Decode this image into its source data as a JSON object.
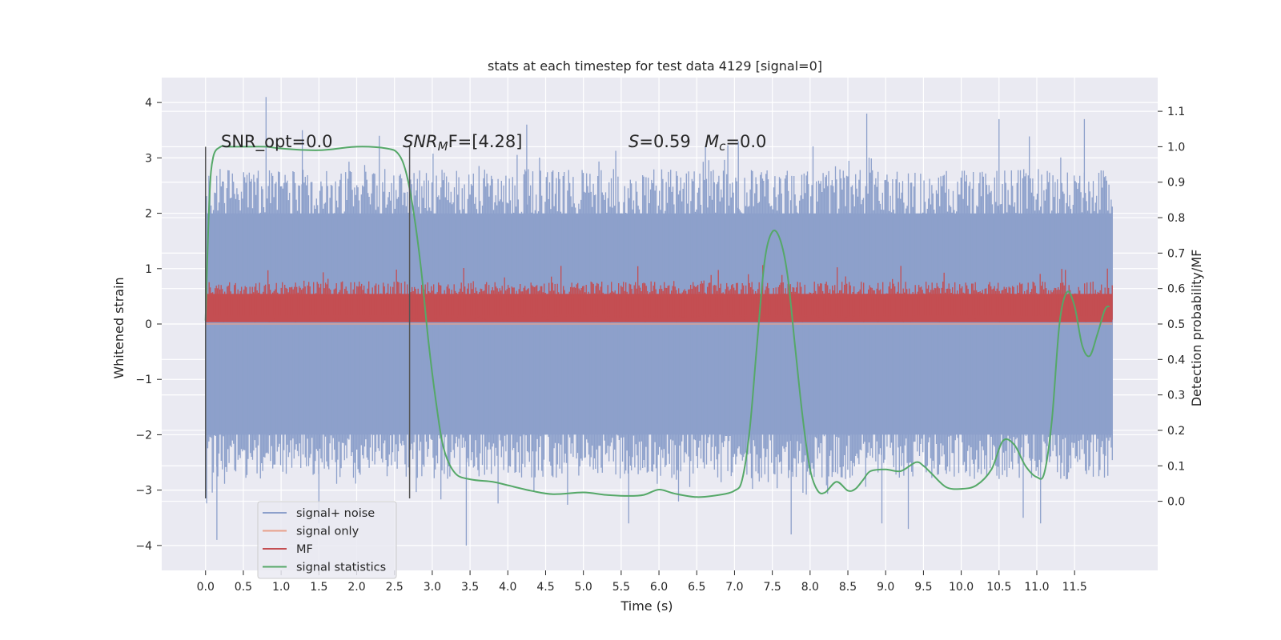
{
  "chart_data": {
    "type": "line",
    "title": "stats at each timestep for test data 4129 [signal=0]",
    "xlabel": "Time (s)",
    "ylabel_left": "Whitened strain",
    "ylabel_right": "Detection probability/MF",
    "xlim": [
      -0.58,
      12.6
    ],
    "ylim_left": [
      -4.45,
      4.45
    ],
    "ylim_right": [
      -0.195,
      1.195
    ],
    "x_ticks": [
      "0.0",
      "0.5",
      "1.0",
      "1.5",
      "2.0",
      "2.5",
      "3.0",
      "3.5",
      "4.0",
      "4.5",
      "5.0",
      "5.5",
      "6.0",
      "6.5",
      "7.0",
      "7.5",
      "8.0",
      "8.5",
      "9.0",
      "9.5",
      "10.0",
      "10.5",
      "11.0",
      "11.5"
    ],
    "x_tick_values": [
      0,
      0.5,
      1,
      1.5,
      2,
      2.5,
      3,
      3.5,
      4,
      4.5,
      5,
      5.5,
      6,
      6.5,
      7,
      7.5,
      8,
      8.5,
      9,
      9.5,
      10,
      10.5,
      11,
      11.5
    ],
    "y_left_ticks": [
      "−4",
      "−3",
      "−2",
      "−1",
      "0",
      "1",
      "2",
      "3",
      "4"
    ],
    "y_left_tick_values": [
      -4,
      -3,
      -2,
      -1,
      0,
      1,
      2,
      3,
      4
    ],
    "y_right_ticks": [
      "0.0",
      "0.1",
      "0.2",
      "0.3",
      "0.4",
      "0.5",
      "0.6",
      "0.7",
      "0.8",
      "0.9",
      "1.0",
      "1.1"
    ],
    "y_right_tick_values": [
      0,
      0.1,
      0.2,
      0.3,
      0.4,
      0.5,
      0.6,
      0.7,
      0.8,
      0.9,
      1.0,
      1.1
    ],
    "grid": true,
    "legend_position": "lower-left",
    "annotations": {
      "snr_opt": "SNR_opt=0.0",
      "snr_mf_base": "SNR",
      "snr_mf_sub": "M",
      "snr_mf_rest": "F=[4.28]",
      "s_italic": "S",
      "s_rest": "=0.59",
      "mc_base": "M",
      "mc_sub": "c",
      "mc_rest": "=0.0"
    },
    "vertical_lines_x": [
      0.0,
      2.7
    ],
    "vertical_lines_ylim": [
      -3.15,
      3.2
    ],
    "series": [
      {
        "name": "signal+ noise",
        "color": "#8da0cb",
        "axis": "left",
        "x_range": [
          0,
          12.0
        ],
        "band_low": -2.0,
        "band_high": 2.0,
        "peaks_positive": [
          [
            0.8,
            4.1
          ],
          [
            1.28,
            3.5
          ],
          [
            4.25,
            3.6
          ],
          [
            10.5,
            3.7
          ],
          [
            11.63,
            3.7
          ],
          [
            8.75,
            3.8
          ],
          [
            7.05,
            3.3
          ],
          [
            2.3,
            3.4
          ]
        ],
        "peaks_negative": [
          [
            0.15,
            -3.9
          ],
          [
            1.5,
            -3.6
          ],
          [
            3.45,
            -4.0
          ],
          [
            7.75,
            -3.8
          ],
          [
            9.3,
            -3.7
          ],
          [
            11.05,
            -3.6
          ],
          [
            8.95,
            -3.6
          ],
          [
            5.6,
            -3.6
          ],
          [
            10.82,
            -3.5
          ]
        ]
      },
      {
        "name": "signal only",
        "color": "#e8a08a",
        "axis": "left",
        "x": [
          0,
          12.0
        ],
        "y": [
          0,
          0
        ]
      },
      {
        "name": "MF",
        "color": "#c44e52",
        "axis": "right",
        "x_range": [
          0,
          12.0
        ],
        "band_low": 0.505,
        "band_high": 0.585,
        "max": 0.68
      },
      {
        "name": "signal statistics",
        "color": "#55a868",
        "axis": "right",
        "x": [
          0.0,
          0.05,
          0.1,
          0.2,
          0.3,
          0.5,
          0.8,
          1.0,
          1.5,
          2.0,
          2.4,
          2.55,
          2.65,
          2.75,
          2.85,
          2.95,
          3.05,
          3.15,
          3.3,
          3.5,
          3.8,
          4.0,
          4.3,
          4.6,
          5.0,
          5.3,
          5.6,
          5.8,
          6.0,
          6.2,
          6.5,
          6.8,
          7.0,
          7.1,
          7.2,
          7.3,
          7.4,
          7.5,
          7.6,
          7.7,
          7.8,
          7.9,
          8.0,
          8.1,
          8.2,
          8.35,
          8.5,
          8.6,
          8.7,
          8.8,
          9.0,
          9.2,
          9.4,
          9.5,
          9.6,
          9.8,
          10.0,
          10.2,
          10.4,
          10.55,
          10.7,
          10.85,
          11.0,
          11.1,
          11.2,
          11.3,
          11.4,
          11.5,
          11.6,
          11.7,
          11.8,
          11.9,
          11.96
        ],
        "y": [
          0.51,
          0.85,
          0.97,
          1.0,
          1.0,
          1.0,
          1.0,
          0.995,
          0.99,
          1.0,
          0.995,
          0.98,
          0.93,
          0.82,
          0.66,
          0.45,
          0.28,
          0.15,
          0.08,
          0.062,
          0.055,
          0.045,
          0.03,
          0.02,
          0.025,
          0.018,
          0.015,
          0.018,
          0.033,
          0.022,
          0.012,
          0.018,
          0.03,
          0.06,
          0.2,
          0.45,
          0.68,
          0.76,
          0.74,
          0.64,
          0.44,
          0.24,
          0.09,
          0.03,
          0.025,
          0.055,
          0.03,
          0.035,
          0.06,
          0.085,
          0.09,
          0.085,
          0.11,
          0.1,
          0.08,
          0.04,
          0.035,
          0.045,
          0.09,
          0.17,
          0.16,
          0.1,
          0.068,
          0.08,
          0.23,
          0.5,
          0.59,
          0.55,
          0.44,
          0.41,
          0.47,
          0.54,
          0.55
        ]
      }
    ]
  }
}
